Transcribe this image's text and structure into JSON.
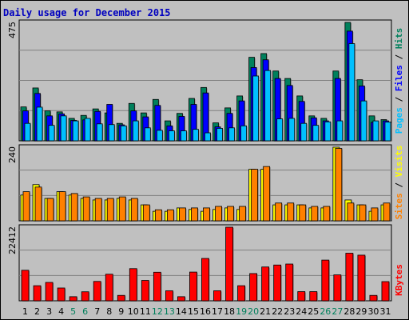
{
  "title": "Daily usage for December 2015",
  "colors": {
    "hits": "#00805c",
    "files": "#0000ff",
    "pages": "#00c0ff",
    "visits": "#ffff00",
    "sites": "#ff8000",
    "kbytes": "#ff0000",
    "weekday_text": "#000000",
    "weekend_text": "#00805c"
  },
  "panel_labels": {
    "top": [
      {
        "text": "Pages",
        "color": "#00c0ff"
      },
      {
        "text": " / ",
        "color": "#000000"
      },
      {
        "text": "Files",
        "color": "#0000ff"
      },
      {
        "text": " / ",
        "color": "#000000"
      },
      {
        "text": "Hits",
        "color": "#00805c"
      }
    ],
    "middle": [
      {
        "text": "Sites",
        "color": "#ff8000"
      },
      {
        "text": " / ",
        "color": "#000000"
      },
      {
        "text": "Visits",
        "color": "#ffff00"
      }
    ],
    "bottom": [
      {
        "text": "KBytes",
        "color": "#ff0000"
      }
    ]
  },
  "chart_data": [
    {
      "type": "bar",
      "title": "Daily usage for December 2015",
      "ylabel": "Pages / Files / Hits",
      "ymax_label": "475",
      "ylim": [
        0,
        475
      ],
      "categories": [
        "1",
        "2",
        "3",
        "4",
        "5",
        "6",
        "7",
        "8",
        "9",
        "10",
        "11",
        "12",
        "13",
        "14",
        "15",
        "16",
        "17",
        "18",
        "19",
        "20",
        "21",
        "22",
        "23",
        "24",
        "25",
        "26",
        "27",
        "28",
        "29",
        "30",
        "31"
      ],
      "weekend_days": [
        "5",
        "6",
        "12",
        "13",
        "19",
        "20",
        "26",
        "27"
      ],
      "series": [
        {
          "name": "Hits",
          "values": [
            136,
            212,
            120,
            116,
            90,
            102,
            128,
            112,
            70,
            150,
            112,
            166,
            80,
            110,
            170,
            214,
            72,
            132,
            180,
            335,
            350,
            280,
            250,
            180,
            100,
            90,
            280,
            475,
            245,
            100,
            85
          ]
        },
        {
          "name": "Files",
          "values": [
            120,
            190,
            100,
            108,
            82,
            84,
            118,
            146,
            64,
            120,
            96,
            142,
            60,
            98,
            146,
            192,
            56,
            110,
            160,
            294,
            325,
            250,
            222,
            158,
            92,
            80,
            250,
            440,
            220,
            74,
            80
          ]
        },
        {
          "name": "Pages",
          "values": [
            70,
            135,
            62,
            100,
            80,
            90,
            68,
            65,
            60,
            80,
            52,
            42,
            40,
            40,
            46,
            32,
            50,
            52,
            60,
            260,
            282,
            88,
            90,
            70,
            62,
            76,
            80,
            390,
            160,
            80,
            75
          ]
        }
      ]
    },
    {
      "type": "bar",
      "ylabel": "Sites / Visits",
      "ymax_label": "240",
      "ylim": [
        0,
        240
      ],
      "categories": [
        "1",
        "2",
        "3",
        "4",
        "5",
        "6",
        "7",
        "8",
        "9",
        "10",
        "11",
        "12",
        "13",
        "14",
        "15",
        "16",
        "17",
        "18",
        "19",
        "20",
        "21",
        "22",
        "23",
        "24",
        "25",
        "26",
        "27",
        "28",
        "29",
        "30",
        "31"
      ],
      "series": [
        {
          "name": "Visits",
          "values": [
            84,
            118,
            73,
            95,
            84,
            73,
            68,
            68,
            73,
            68,
            52,
            31,
            31,
            42,
            37,
            31,
            37,
            42,
            37,
            168,
            168,
            52,
            52,
            52,
            42,
            42,
            240,
            68,
            52,
            31,
            52
          ]
        },
        {
          "name": "Sites",
          "values": [
            95,
            110,
            73,
            95,
            89,
            78,
            73,
            73,
            78,
            73,
            52,
            36,
            36,
            42,
            42,
            42,
            47,
            47,
            47,
            168,
            177,
            58,
            58,
            52,
            47,
            47,
            236,
            58,
            52,
            42,
            58
          ]
        }
      ]
    },
    {
      "type": "bar",
      "ylabel": "KBytes",
      "ymax_label": "22412",
      "ylim": [
        0,
        22412
      ],
      "categories": [
        "1",
        "2",
        "3",
        "4",
        "5",
        "6",
        "7",
        "8",
        "9",
        "10",
        "11",
        "12",
        "13",
        "14",
        "15",
        "16",
        "17",
        "18",
        "19",
        "20",
        "21",
        "22",
        "23",
        "24",
        "25",
        "26",
        "27",
        "28",
        "29",
        "30",
        "31"
      ],
      "series": [
        {
          "name": "KBytes",
          "values": [
            9300,
            4600,
            5600,
            3900,
            1250,
            2750,
            5900,
            8100,
            1650,
            9800,
            6200,
            8700,
            3050,
            1250,
            8750,
            12900,
            3050,
            22412,
            4600,
            8300,
            10300,
            10900,
            11200,
            2800,
            2800,
            12400,
            7900,
            14500,
            13900,
            1650,
            5850
          ]
        }
      ]
    }
  ]
}
